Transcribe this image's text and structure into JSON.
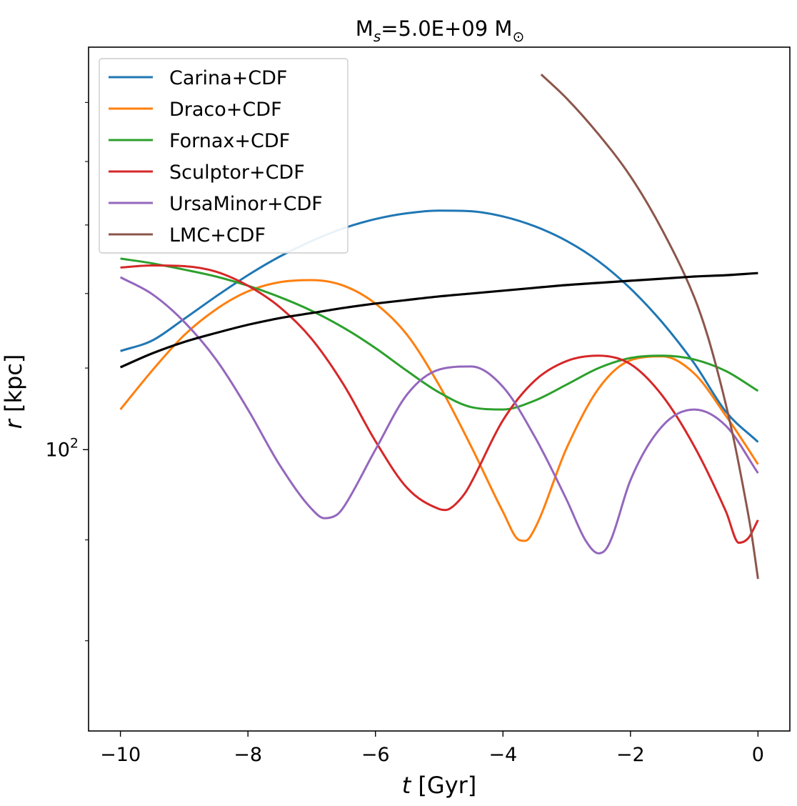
{
  "chart_data": {
    "type": "line",
    "title": {
      "main": "M",
      "sub": "s",
      "rest": "=5.0E+09 M",
      "sym": "⊙"
    },
    "xlabel": {
      "var": "t",
      "unit": " [Gyr]"
    },
    "ylabel": {
      "var": "r",
      "unit": " [kpc]"
    },
    "xlim": [
      -10.5,
      0.5
    ],
    "ylim": [
      72,
      160
    ],
    "yscale": "log",
    "grid": false,
    "legend_position": "upper-left",
    "xticks": [
      {
        "value": -10,
        "label": "−10"
      },
      {
        "value": -8,
        "label": "−8"
      },
      {
        "value": -6,
        "label": "−6"
      },
      {
        "value": -4,
        "label": "−4"
      },
      {
        "value": -2,
        "label": "−2"
      },
      {
        "value": 0,
        "label": "0"
      }
    ],
    "yticks_major": [
      {
        "value": 100,
        "label_base": "10",
        "label_exp": "2"
      }
    ],
    "yticks_minor": [
      80,
      90,
      110,
      120,
      130,
      140,
      150
    ],
    "series": [
      {
        "name": "Carina+CDF",
        "color": "#1f77b4",
        "x": [
          -10,
          -9.5,
          -9,
          -8.5,
          -8,
          -7.5,
          -7,
          -6.5,
          -6,
          -5.5,
          -5,
          -4.5,
          -4,
          -3.5,
          -3,
          -2.5,
          -2,
          -1.5,
          -1,
          -0.5,
          0
        ],
        "y": [
          112.2,
          113.6,
          116.5,
          119.6,
          122.6,
          125.3,
          127.6,
          129.5,
          130.9,
          131.8,
          132.2,
          132.1,
          131.3,
          129.8,
          127.6,
          124.6,
          120.7,
          116.0,
          110.6,
          104.5,
          100.9
        ]
      },
      {
        "name": "Draco+CDF",
        "color": "#ff7f0e",
        "x": [
          -10,
          -9.5,
          -9,
          -8.5,
          -8,
          -7.5,
          -7,
          -6.5,
          -6,
          -5.5,
          -5,
          -4.5,
          -4,
          -3.75,
          -3.65,
          -3.5,
          -3,
          -2.5,
          -2,
          -1.5,
          -1,
          -0.5,
          -0.2,
          0
        ],
        "y": [
          104.8,
          109.7,
          114.3,
          117.8,
          120.3,
          121.6,
          121.9,
          121.1,
          118.6,
          114.3,
          107.8,
          100.4,
          93.0,
          90.0,
          89.9,
          91.2,
          100.2,
          107.4,
          111.0,
          111.5,
          109.3,
          104.0,
          100.6,
          98.3
        ]
      },
      {
        "name": "Fornax+CDF",
        "color": "#2ca02c",
        "x": [
          -10,
          -9.5,
          -9,
          -8.5,
          -8,
          -7.5,
          -7,
          -6.5,
          -6,
          -5.5,
          -5,
          -4.5,
          -4,
          -3.5,
          -3,
          -2.5,
          -2,
          -1.5,
          -1,
          -0.5,
          0
        ],
        "y": [
          125.0,
          124.3,
          123.4,
          122.4,
          121.1,
          119.5,
          117.6,
          115.3,
          112.6,
          109.6,
          106.9,
          105.1,
          104.8,
          105.9,
          107.9,
          110.0,
          111.3,
          111.6,
          111.1,
          109.6,
          107.1
        ]
      },
      {
        "name": "Sculptor+CDF",
        "color": "#d62728",
        "x": [
          -10,
          -9.5,
          -9,
          -8.5,
          -8,
          -7.5,
          -7,
          -6.5,
          -6,
          -5.5,
          -5,
          -4.9,
          -4.8,
          -4.6,
          -4.5,
          -4,
          -3.5,
          -3,
          -2.5,
          -2,
          -1.5,
          -1,
          -0.5,
          -0.3,
          -0.15,
          0
        ],
        "y": [
          123.7,
          124.0,
          123.9,
          123.1,
          121.1,
          118.1,
          113.8,
          107.9,
          101.0,
          95.6,
          93.3,
          93.2,
          93.5,
          95.0,
          96.2,
          103.5,
          108.4,
          110.9,
          111.6,
          110.5,
          106.5,
          100.4,
          93.0,
          89.7,
          90.2,
          92.1
        ]
      },
      {
        "name": "UrsaMinor+CDF",
        "color": "#9467bd",
        "x": [
          -10,
          -9.5,
          -9,
          -8.5,
          -8,
          -7.5,
          -7,
          -6.8,
          -6.6,
          -6.5,
          -6,
          -5.5,
          -5,
          -4.5,
          -4,
          -3.5,
          -3,
          -2.7,
          -2.5,
          -2.4,
          -2.3,
          -2,
          -1.5,
          -1,
          -0.5,
          0
        ],
        "y": [
          122.3,
          119.9,
          116.1,
          111.1,
          104.8,
          98.2,
          93.3,
          92.3,
          92.7,
          93.5,
          100.0,
          106.7,
          109.8,
          110.2,
          107.6,
          101.5,
          94.3,
          89.9,
          88.6,
          88.9,
          90.1,
          96.5,
          102.8,
          104.8,
          102.8,
          97.3
        ]
      },
      {
        "name": "LMC+CDF",
        "color": "#8c564b",
        "x": [
          -3.4,
          -3,
          -2.5,
          -2,
          -1.5,
          -1,
          -0.8,
          -0.6,
          -0.4,
          -0.2,
          -0.1,
          0
        ],
        "y": [
          155.0,
          150.7,
          144.5,
          137.6,
          129.2,
          119.5,
          114.5,
          108.5,
          101.9,
          94.5,
          90.6,
          86.0
        ]
      },
      {
        "name": "",
        "color": "#000000",
        "x": [
          -10,
          -9.5,
          -9,
          -8.5,
          -8,
          -7.5,
          -7,
          -6.5,
          -6,
          -5.5,
          -5,
          -4.5,
          -4,
          -3.5,
          -3,
          -2.5,
          -2,
          -1.5,
          -1,
          -0.5,
          0
        ],
        "y": [
          110.1,
          111.9,
          113.4,
          114.6,
          115.7,
          116.6,
          117.3,
          118.0,
          118.6,
          119.1,
          119.6,
          120.0,
          120.4,
          120.8,
          121.2,
          121.5,
          121.8,
          122.1,
          122.4,
          122.6,
          122.9
        ]
      }
    ]
  }
}
